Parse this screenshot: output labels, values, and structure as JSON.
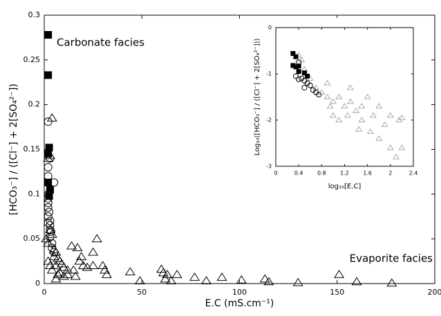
{
  "chart_data": [
    {
      "type": "scatter",
      "xlabel": "E.C (mS.cm⁻¹)",
      "ylabel": "[HCO₃⁻] / ([Cl⁻] + 2[SO₄²⁻])",
      "annotations": [
        "Carbonate facies",
        "Evaporite facies"
      ],
      "xlim": [
        0,
        200
      ],
      "xticks": [
        0,
        50,
        100,
        150,
        200
      ],
      "ylim": [
        0,
        0.3
      ],
      "yticks": [
        0,
        0.05,
        0.1,
        0.15,
        0.2,
        0.25,
        0.3
      ],
      "series": [
        {
          "marker": "square",
          "color": "#000000",
          "x": [
            2,
            2,
            2.5,
            2,
            2,
            3,
            2.5
          ],
          "values": [
            0.278,
            0.233,
            0.152,
            0.145,
            0.113,
            0.105,
            0.098
          ]
        },
        {
          "marker": "circle",
          "color": "#000000",
          "x": [
            2,
            5,
            3,
            2,
            2,
            2,
            2,
            2,
            2.5,
            2,
            3,
            3,
            3.5,
            3,
            4,
            4,
            5,
            2,
            2,
            3
          ],
          "values": [
            0.181,
            0.113,
            0.14,
            0.13,
            0.12,
            0.1,
            0.09,
            0.085,
            0.08,
            0.075,
            0.07,
            0.065,
            0.058,
            0.052,
            0.045,
            0.04,
            0.035,
            0.095,
            0.068,
            0.06
          ]
        },
        {
          "marker": "triangle",
          "color": "#000000",
          "x": [
            4,
            3,
            2,
            1,
            2,
            5,
            6,
            5,
            7,
            8,
            9,
            6,
            10,
            12,
            8,
            14,
            17,
            19,
            18,
            20,
            22,
            15,
            12,
            10,
            6,
            27,
            25,
            30,
            31,
            32,
            25,
            44,
            49,
            60,
            61,
            62,
            63,
            65,
            68,
            77,
            83,
            91,
            101,
            113,
            115,
            130,
            151,
            160,
            178,
            3,
            4,
            2,
            3,
            4,
            7,
            16
          ],
          "values": [
            0.185,
            0.143,
            0.14,
            0.05,
            0.045,
            0.038,
            0.035,
            0.03,
            0.028,
            0.025,
            0.022,
            0.02,
            0.018,
            0.015,
            0.012,
            0.042,
            0.04,
            0.03,
            0.025,
            0.02,
            0.018,
            0.015,
            0.01,
            0.008,
            0.005,
            0.05,
            0.035,
            0.02,
            0.015,
            0.01,
            0.02,
            0.013,
            0.003,
            0.016,
            0.012,
            0.005,
            0.01,
            0.003,
            0.01,
            0.007,
            0.003,
            0.007,
            0.004,
            0.005,
            0.002,
            0.001,
            0.01,
            0.002,
            0.0005,
            0.06,
            0.055,
            0.025,
            0.02,
            0.015,
            0.01,
            0.008
          ]
        }
      ]
    },
    {
      "type": "scatter",
      "xlabel": "log₁₀[E.C]",
      "ylabel": "Log₁₀([HCO₃⁻] / ([Cl⁻] + 2[SO₄²⁻]))",
      "xlim": [
        0,
        2.4
      ],
      "xticks": [
        0,
        0.4,
        0.8,
        1.2,
        1.6,
        2,
        2.4
      ],
      "ylim": [
        -3,
        0
      ],
      "yticks": [
        -3,
        -2,
        -1,
        0
      ],
      "series": [
        {
          "marker": "triangle",
          "color": "#aaaaaa",
          "x": [
            0.4,
            0.45,
            0.5,
            0.6,
            0.7,
            0.8,
            0.9,
            1.0,
            1.1,
            1.2,
            1.3,
            1.4,
            1.5,
            1.5,
            1.6,
            1.7,
            1.8,
            1.8,
            1.9,
            2.0,
            2.0,
            2.1,
            2.2,
            1.3,
            1.0,
            0.9,
            1.1,
            1.45,
            1.65,
            2.15,
            2.2,
            0.95,
            1.25
          ],
          "values": [
            -0.6,
            -0.7,
            -0.9,
            -1.1,
            -1.3,
            -1.4,
            -1.5,
            -1.6,
            -1.5,
            -1.7,
            -1.6,
            -1.8,
            -1.7,
            -2.0,
            -1.5,
            -1.9,
            -1.7,
            -2.4,
            -2.1,
            -1.9,
            -2.6,
            -2.8,
            -2.6,
            -1.3,
            -1.9,
            -1.2,
            -2.0,
            -2.2,
            -2.25,
            -2.0,
            -1.95,
            -1.7,
            -1.9
          ]
        },
        {
          "marker": "circle",
          "color": "#000000",
          "x": [
            0.4,
            0.35,
            0.4,
            0.45,
            0.5,
            0.55,
            0.6,
            0.7,
            0.75,
            0.5,
            0.65
          ],
          "values": [
            -0.75,
            -1.05,
            -1.12,
            -1.1,
            -1.15,
            -1.2,
            -1.25,
            -1.4,
            -1.45,
            -1.3,
            -1.35
          ]
        },
        {
          "marker": "square",
          "color": "#000000",
          "x": [
            0.3,
            0.35,
            0.3,
            0.35,
            0.4,
            0.4,
            0.5,
            0.55
          ],
          "values": [
            -0.56,
            -0.63,
            -0.82,
            -0.85,
            -0.95,
            -0.83,
            -0.98,
            -1.05
          ]
        }
      ]
    }
  ]
}
